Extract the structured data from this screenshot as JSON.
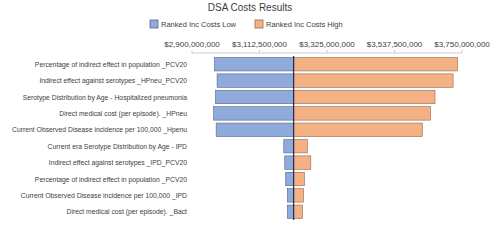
{
  "chart_data": {
    "type": "bar",
    "orientation": "horizontal",
    "title": "DSA Costs Results",
    "categories": [
      "Percentage of indirect effect in population _PCV20",
      "Indirect effect against serotypes _HPneu_PCV20",
      "Serotype Distribution by Age - Hospitalized pneumonia",
      "Direct medical cost (per episode). _HPneu",
      "Current Observed Disease incidence per 100,000 _Hpenu",
      "Current era Serotype Distribution by Age - IPD",
      "Indirect effect against serotypes _IPD_PCV20",
      "Percentage of indirect effect in population _PCV20",
      "Current Observed Disease incidence per 100,000 _IPD",
      "Direct medical cost (per episode). _Bact"
    ],
    "base_value": 3220000000,
    "series": [
      {
        "name": "Ranked Inc Costs Low",
        "color": "#8faadc",
        "values": [
          2971000000,
          2979000000,
          2974000000,
          2968000000,
          2976000000,
          3189000000,
          3192000000,
          3195000000,
          3200000000,
          3200000000
        ]
      },
      {
        "name": "Ranked Inc Costs High",
        "color": "#f4b183",
        "values": [
          3736000000,
          3722000000,
          3665000000,
          3651000000,
          3625000000,
          3263000000,
          3274000000,
          3254000000,
          3251000000,
          3248000000
        ]
      }
    ],
    "xlim": [
      2900000000,
      3750000000
    ],
    "xticks": [
      {
        "value": 2900000000,
        "label": "$2,900,000,000"
      },
      {
        "value": 3112500000,
        "label": "$3,112,500,000"
      },
      {
        "value": 3325000000,
        "label": "$3,325,000,000"
      },
      {
        "value": 3537500000,
        "label": "$3,537,500,000"
      },
      {
        "value": 3750000000,
        "label": "$3,750,000,000"
      }
    ],
    "legend": "top",
    "grid": false
  }
}
